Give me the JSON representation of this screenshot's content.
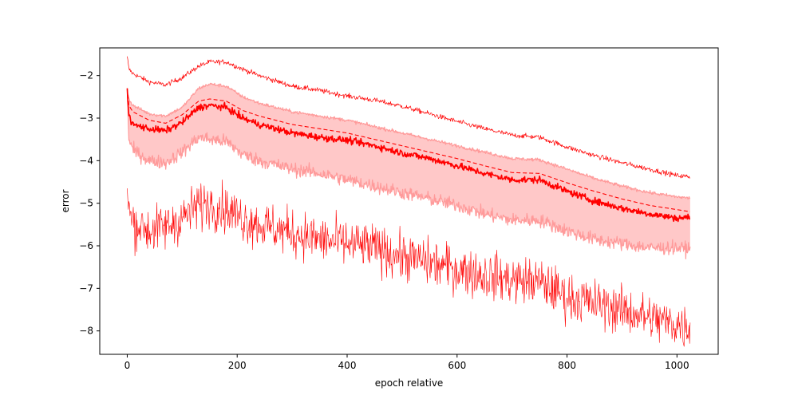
{
  "chart_data": {
    "type": "line",
    "title": "",
    "xlabel": "epoch relative",
    "ylabel": "error",
    "xlim": [
      -50,
      1075
    ],
    "ylim": [
      -8.55,
      -1.35
    ],
    "xticks": [
      0,
      200,
      400,
      600,
      800,
      1000
    ],
    "yticks": [
      -8,
      -7,
      -6,
      -5,
      -4,
      -3,
      -2
    ],
    "grid": false,
    "legend": "none",
    "n_points": 1025,
    "colors": {
      "line": "#ff0000",
      "band_fill": "#ffc8c8",
      "band_edge": "#ff9a9a"
    },
    "series": [
      {
        "role": "upper-thin",
        "style": "solid-thin",
        "noise": 0.03,
        "points": [
          [
            0,
            -1.55
          ],
          [
            3,
            -1.85
          ],
          [
            10,
            -1.95
          ],
          [
            40,
            -2.15
          ],
          [
            70,
            -2.22
          ],
          [
            100,
            -2.05
          ],
          [
            130,
            -1.78
          ],
          [
            150,
            -1.68
          ],
          [
            180,
            -1.68
          ],
          [
            210,
            -1.85
          ],
          [
            240,
            -2.0
          ],
          [
            300,
            -2.25
          ],
          [
            350,
            -2.35
          ],
          [
            400,
            -2.48
          ],
          [
            450,
            -2.58
          ],
          [
            500,
            -2.72
          ],
          [
            550,
            -2.9
          ],
          [
            600,
            -3.08
          ],
          [
            650,
            -3.25
          ],
          [
            700,
            -3.4
          ],
          [
            750,
            -3.45
          ],
          [
            800,
            -3.68
          ],
          [
            850,
            -3.88
          ],
          [
            900,
            -4.05
          ],
          [
            950,
            -4.2
          ],
          [
            1000,
            -4.35
          ],
          [
            1024,
            -4.38
          ]
        ]
      },
      {
        "role": "band-upper",
        "style": "band-edge",
        "noise": 0.02,
        "points": [
          [
            0,
            -2.3
          ],
          [
            3,
            -2.55
          ],
          [
            10,
            -2.7
          ],
          [
            40,
            -2.9
          ],
          [
            70,
            -2.95
          ],
          [
            100,
            -2.75
          ],
          [
            130,
            -2.3
          ],
          [
            150,
            -2.2
          ],
          [
            180,
            -2.25
          ],
          [
            210,
            -2.5
          ],
          [
            240,
            -2.65
          ],
          [
            300,
            -2.85
          ],
          [
            350,
            -2.95
          ],
          [
            400,
            -3.05
          ],
          [
            450,
            -3.2
          ],
          [
            500,
            -3.35
          ],
          [
            550,
            -3.5
          ],
          [
            600,
            -3.65
          ],
          [
            650,
            -3.8
          ],
          [
            700,
            -3.95
          ],
          [
            750,
            -3.98
          ],
          [
            800,
            -4.2
          ],
          [
            850,
            -4.42
          ],
          [
            900,
            -4.6
          ],
          [
            950,
            -4.75
          ],
          [
            1000,
            -4.85
          ],
          [
            1024,
            -4.88
          ]
        ]
      },
      {
        "role": "band-lower",
        "style": "band-edge",
        "noise": 0.08,
        "points": [
          [
            0,
            -2.3
          ],
          [
            3,
            -3.5
          ],
          [
            10,
            -3.75
          ],
          [
            40,
            -4.0
          ],
          [
            70,
            -4.05
          ],
          [
            100,
            -3.8
          ],
          [
            130,
            -3.45
          ],
          [
            150,
            -3.5
          ],
          [
            180,
            -3.55
          ],
          [
            210,
            -3.85
          ],
          [
            240,
            -4.0
          ],
          [
            300,
            -4.2
          ],
          [
            350,
            -4.3
          ],
          [
            400,
            -4.45
          ],
          [
            450,
            -4.6
          ],
          [
            500,
            -4.75
          ],
          [
            550,
            -4.9
          ],
          [
            600,
            -5.05
          ],
          [
            650,
            -5.25
          ],
          [
            700,
            -5.4
          ],
          [
            750,
            -5.4
          ],
          [
            800,
            -5.65
          ],
          [
            850,
            -5.85
          ],
          [
            900,
            -5.95
          ],
          [
            950,
            -6.05
          ],
          [
            1000,
            -6.05
          ],
          [
            1024,
            -6.08
          ]
        ]
      },
      {
        "role": "mean-dashed",
        "style": "dashed",
        "noise": 0.0,
        "points": [
          [
            0,
            -2.3
          ],
          [
            3,
            -2.7
          ],
          [
            10,
            -2.85
          ],
          [
            40,
            -3.05
          ],
          [
            70,
            -3.12
          ],
          [
            100,
            -2.92
          ],
          [
            130,
            -2.6
          ],
          [
            150,
            -2.55
          ],
          [
            180,
            -2.6
          ],
          [
            210,
            -2.82
          ],
          [
            240,
            -2.95
          ],
          [
            300,
            -3.15
          ],
          [
            350,
            -3.25
          ],
          [
            400,
            -3.35
          ],
          [
            450,
            -3.5
          ],
          [
            500,
            -3.65
          ],
          [
            550,
            -3.8
          ],
          [
            600,
            -3.95
          ],
          [
            650,
            -4.12
          ],
          [
            700,
            -4.28
          ],
          [
            750,
            -4.3
          ],
          [
            800,
            -4.52
          ],
          [
            850,
            -4.72
          ],
          [
            900,
            -4.9
          ],
          [
            950,
            -5.05
          ],
          [
            1000,
            -5.15
          ],
          [
            1024,
            -5.2
          ]
        ]
      },
      {
        "role": "median-solid",
        "style": "solid-thick",
        "noise": 0.04,
        "points": [
          [
            0,
            -2.3
          ],
          [
            3,
            -2.95
          ],
          [
            10,
            -3.15
          ],
          [
            40,
            -3.25
          ],
          [
            70,
            -3.3
          ],
          [
            100,
            -3.1
          ],
          [
            130,
            -2.75
          ],
          [
            150,
            -2.7
          ],
          [
            180,
            -2.75
          ],
          [
            210,
            -3.0
          ],
          [
            240,
            -3.15
          ],
          [
            300,
            -3.35
          ],
          [
            350,
            -3.45
          ],
          [
            400,
            -3.52
          ],
          [
            450,
            -3.65
          ],
          [
            500,
            -3.82
          ],
          [
            550,
            -3.95
          ],
          [
            600,
            -4.12
          ],
          [
            650,
            -4.3
          ],
          [
            700,
            -4.45
          ],
          [
            750,
            -4.45
          ],
          [
            800,
            -4.72
          ],
          [
            850,
            -4.95
          ],
          [
            900,
            -5.12
          ],
          [
            950,
            -5.25
          ],
          [
            1000,
            -5.35
          ],
          [
            1024,
            -5.33
          ]
        ]
      },
      {
        "role": "lower-noisy",
        "style": "solid-noisy",
        "noise": 0.28,
        "points": [
          [
            0,
            -4.65
          ],
          [
            3,
            -5.2
          ],
          [
            10,
            -5.45
          ],
          [
            40,
            -5.65
          ],
          [
            70,
            -5.55
          ],
          [
            100,
            -5.35
          ],
          [
            130,
            -5.05
          ],
          [
            150,
            -5.0
          ],
          [
            180,
            -5.15
          ],
          [
            210,
            -5.35
          ],
          [
            240,
            -5.5
          ],
          [
            300,
            -5.7
          ],
          [
            350,
            -5.85
          ],
          [
            400,
            -5.95
          ],
          [
            450,
            -6.05
          ],
          [
            500,
            -6.25
          ],
          [
            550,
            -6.4
          ],
          [
            600,
            -6.55
          ],
          [
            650,
            -6.7
          ],
          [
            700,
            -6.8
          ],
          [
            750,
            -6.85
          ],
          [
            800,
            -7.2
          ],
          [
            850,
            -7.35
          ],
          [
            900,
            -7.5
          ],
          [
            950,
            -7.7
          ],
          [
            1000,
            -7.85
          ],
          [
            1024,
            -7.9
          ]
        ]
      }
    ]
  }
}
